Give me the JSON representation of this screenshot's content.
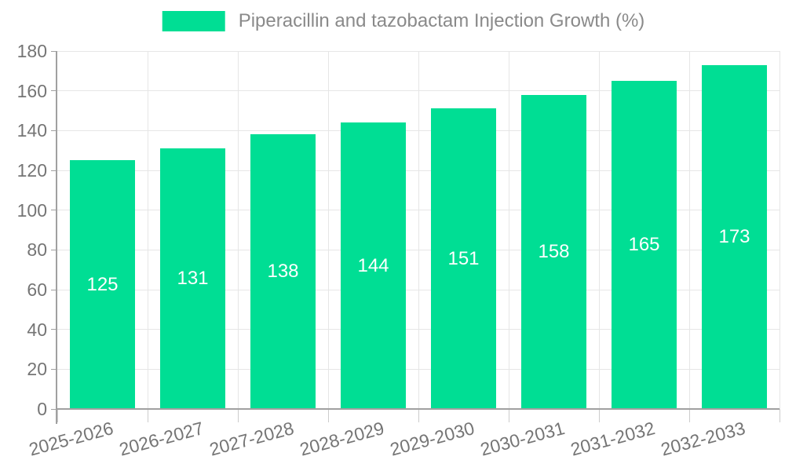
{
  "chart_data": {
    "type": "bar",
    "title": "Piperacillin and tazobactam Injection Growth (%)",
    "categories": [
      "2025-2026",
      "2026-2027",
      "2027-2028",
      "2028-2029",
      "2029-2030",
      "2030-2031",
      "2031-2032",
      "2032-2033"
    ],
    "values": [
      125,
      131,
      138,
      144,
      151,
      158,
      165,
      173
    ],
    "xlabel": "",
    "ylabel": "",
    "ylim": [
      0,
      180
    ],
    "ytick_step": 20,
    "grid": true,
    "legend_position": "top-center",
    "value_labels": "inside-middle",
    "colors": {
      "bar": "#00DE94",
      "value_label": "#ffffff",
      "axis_label": "#757575",
      "legend_text": "#8a8a8a",
      "gridline": "#e6e6e6",
      "axis_line": "#a0a0a0",
      "x_tick": "#cccccc",
      "background": "#ffffff"
    }
  }
}
